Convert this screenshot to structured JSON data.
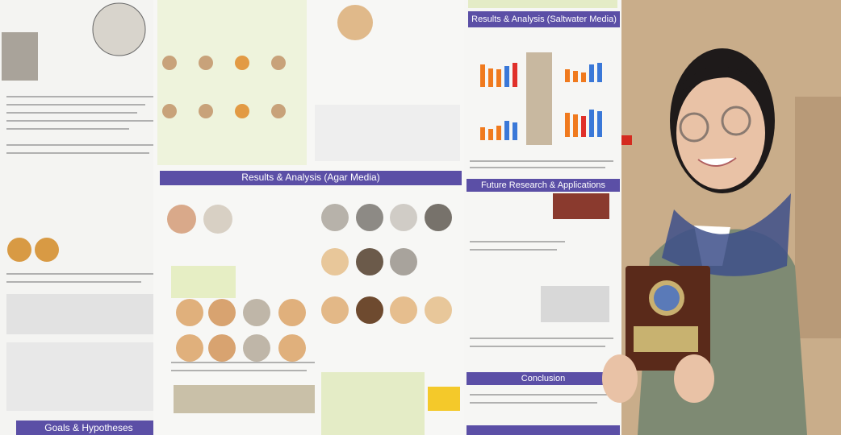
{
  "poster": {
    "headers": [
      "Results & Analysis (Saltwater Media)",
      "Results & Analysis (Agar Media)",
      "Future Research & Applications",
      "Conclusion",
      "Goals & Hypotheses"
    ]
  }
}
